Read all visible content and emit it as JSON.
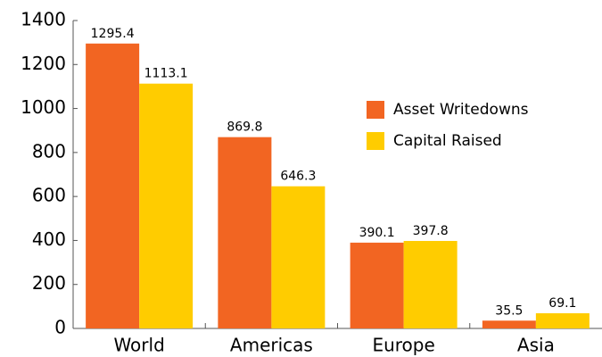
{
  "chart_data": {
    "type": "bar",
    "categories": [
      "World",
      "Americas",
      "Europe",
      "Asia"
    ],
    "series": [
      {
        "name": "Asset Writedowns",
        "color": "#f26522",
        "values": [
          1295.4,
          869.8,
          390.1,
          35.5
        ]
      },
      {
        "name": "Capital Raised",
        "color": "#ffcc00",
        "values": [
          1113.1,
          646.3,
          397.8,
          69.1
        ]
      }
    ],
    "ylim": [
      0,
      1400
    ],
    "yticks": [
      0,
      200,
      400,
      600,
      800,
      1000,
      1200,
      1400
    ]
  }
}
